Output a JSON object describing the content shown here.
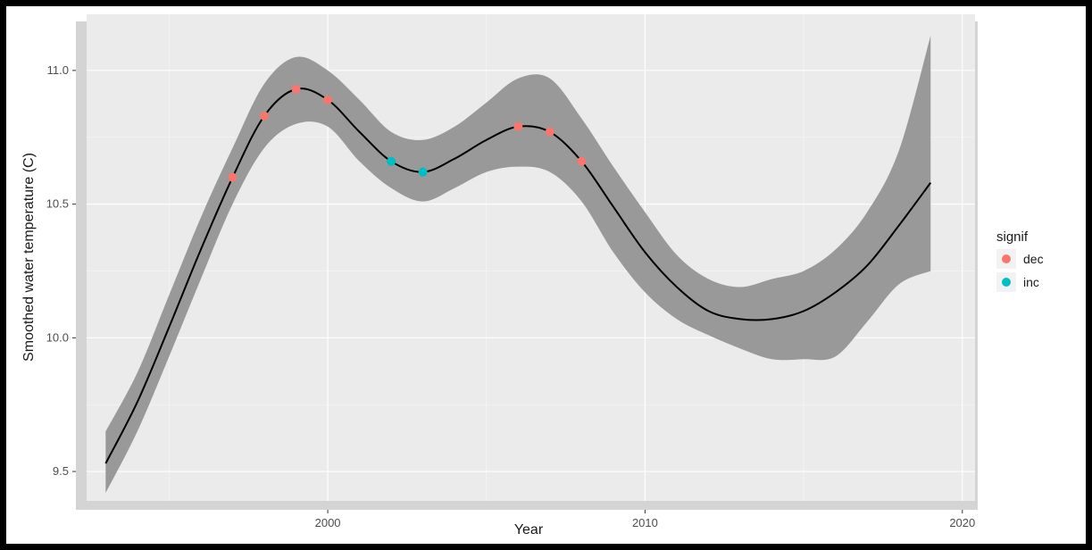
{
  "chart_data": {
    "type": "line",
    "title": "",
    "xlabel": "Year",
    "ylabel": "Smoothed water temperature (C)",
    "xlim": [
      1992.4,
      2020.4
    ],
    "ylim": [
      9.39,
      11.21
    ],
    "x_ticks": [
      2000,
      2010,
      2020
    ],
    "x_tick_labels": [
      "2000",
      "2010",
      "2020"
    ],
    "y_ticks": [
      9.5,
      10.0,
      10.5,
      11.0
    ],
    "y_tick_labels": [
      "9.5",
      "10.0",
      "10.5",
      "11.0"
    ],
    "grid": true,
    "legend": {
      "title": "signif",
      "placement": "right",
      "entries": [
        {
          "label": "dec",
          "color": "#F8766D"
        },
        {
          "label": "inc",
          "color": "#00BFC4"
        }
      ]
    },
    "colors": {
      "panel": "#ebebeb",
      "grid_major": "#ffffff",
      "ribbon": "#999999",
      "line": "#000000",
      "dec": "#F8766D",
      "inc": "#00BFC4"
    },
    "smooth": {
      "x": [
        1993,
        1994,
        1995,
        1996,
        1997,
        1998,
        1999,
        2000,
        2001,
        2002,
        2003,
        2004,
        2005,
        2006,
        2007,
        2008,
        2009,
        2010,
        2011,
        2012,
        2013,
        2014,
        2015,
        2016,
        2017,
        2018,
        2019
      ],
      "y": [
        9.53,
        9.76,
        10.04,
        10.33,
        10.6,
        10.83,
        10.93,
        10.89,
        10.77,
        10.66,
        10.62,
        10.67,
        10.74,
        10.79,
        10.77,
        10.66,
        10.49,
        10.32,
        10.19,
        10.1,
        10.07,
        10.07,
        10.1,
        10.17,
        10.27,
        10.42,
        10.58
      ],
      "lower": [
        9.42,
        9.65,
        9.93,
        10.22,
        10.5,
        10.71,
        10.8,
        10.79,
        10.66,
        10.56,
        10.51,
        10.56,
        10.62,
        10.64,
        10.62,
        10.51,
        10.32,
        10.17,
        10.07,
        10.01,
        9.96,
        9.92,
        9.92,
        9.93,
        10.06,
        10.2,
        10.25
      ],
      "upper": [
        9.65,
        9.87,
        10.16,
        10.45,
        10.71,
        10.95,
        11.05,
        11.0,
        10.89,
        10.77,
        10.74,
        10.79,
        10.88,
        10.97,
        10.97,
        10.82,
        10.64,
        10.47,
        10.31,
        10.22,
        10.19,
        10.22,
        10.25,
        10.33,
        10.47,
        10.7,
        11.13
      ]
    },
    "points": [
      {
        "x": 1997,
        "y": 10.6,
        "signif": "dec"
      },
      {
        "x": 1998,
        "y": 10.83,
        "signif": "dec"
      },
      {
        "x": 1999,
        "y": 10.93,
        "signif": "dec"
      },
      {
        "x": 2000,
        "y": 10.89,
        "signif": "dec"
      },
      {
        "x": 2002,
        "y": 10.66,
        "signif": "inc"
      },
      {
        "x": 2003,
        "y": 10.62,
        "signif": "inc"
      },
      {
        "x": 2006,
        "y": 10.79,
        "signif": "dec"
      },
      {
        "x": 2007,
        "y": 10.77,
        "signif": "dec"
      },
      {
        "x": 2008,
        "y": 10.66,
        "signif": "dec"
      }
    ]
  }
}
